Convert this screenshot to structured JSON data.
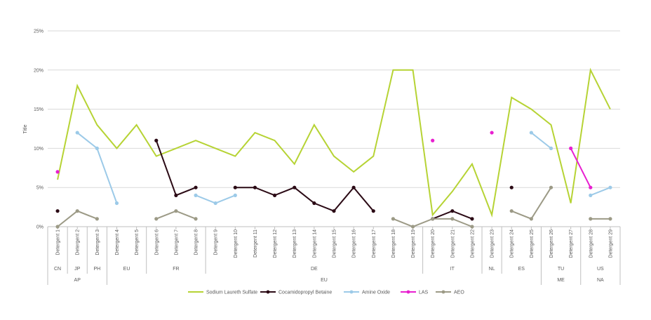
{
  "chart_data": {
    "type": "line",
    "title": "",
    "ylabel": "Title",
    "xlabel": "",
    "ylim": [
      0,
      25
    ],
    "yticks": [
      "0%",
      "5%",
      "10%",
      "15%",
      "20%",
      "25%"
    ],
    "ytick_values": [
      0,
      5,
      10,
      15,
      20,
      25
    ],
    "grid": true,
    "legend_position": "bottom",
    "categories": [
      "Detergent 1",
      "Detergent 2",
      "Detergent 3",
      "Detergent 4",
      "Detergent 5",
      "Detergent 6",
      "Detergent 7",
      "Detergent 8",
      "Detergent 9",
      "Detergent 10",
      "Detergent 11",
      "Detergent 12",
      "Detergent 13",
      "Detergent 14",
      "Detergent 15",
      "Detergent 16",
      "Detergent 17",
      "Detergent 18",
      "Detergent 19",
      "Detergent 20",
      "Detergent 21",
      "Detergent 22",
      "Detergent 23",
      "Detergent 24",
      "Detergent 25",
      "Detergent 26",
      "Detergent 27",
      "Detergent 28",
      "Detergent 29"
    ],
    "countries": [
      {
        "label": "CN",
        "span": [
          1,
          1
        ]
      },
      {
        "label": "JP",
        "span": [
          2,
          2
        ]
      },
      {
        "label": "PH",
        "span": [
          3,
          3
        ]
      },
      {
        "label": "EU",
        "span": [
          4,
          5
        ]
      },
      {
        "label": "FR",
        "span": [
          6,
          8
        ]
      },
      {
        "label": "DE",
        "span": [
          9,
          19
        ]
      },
      {
        "label": "IT",
        "span": [
          20,
          22
        ]
      },
      {
        "label": "NL",
        "span": [
          23,
          23
        ]
      },
      {
        "label": "ES",
        "span": [
          24,
          25
        ]
      },
      {
        "label": "TU",
        "span": [
          26,
          27
        ]
      },
      {
        "label": "US",
        "span": [
          28,
          29
        ]
      }
    ],
    "regions": [
      {
        "label": "AP",
        "span": [
          1,
          3
        ]
      },
      {
        "label": "EU",
        "span": [
          4,
          25
        ]
      },
      {
        "label": "ME",
        "span": [
          26,
          27
        ]
      },
      {
        "label": "NA",
        "span": [
          28,
          29
        ]
      }
    ],
    "series": [
      {
        "name": "Sodium Laureth Sulfate",
        "color": "#b6d334",
        "values": [
          6,
          18,
          13,
          10,
          13,
          9,
          10,
          11,
          10,
          9,
          12,
          11,
          8,
          13,
          9,
          7,
          9,
          20,
          20,
          1.5,
          4.5,
          8,
          1.5,
          16.5,
          15,
          13,
          3,
          20,
          15
        ]
      },
      {
        "name": "Cocamidopropyl Betaine",
        "color": "#2b0a15",
        "values": [
          2,
          null,
          null,
          null,
          null,
          11,
          4,
          5,
          null,
          5,
          5,
          4,
          5,
          3,
          2,
          5,
          2,
          null,
          null,
          1,
          2,
          1,
          null,
          5,
          null,
          null,
          null,
          null,
          null
        ]
      },
      {
        "name": "Amine Oxide",
        "color": "#9ccae8",
        "values": [
          null,
          12,
          10,
          3,
          null,
          null,
          null,
          4,
          3,
          4,
          null,
          null,
          null,
          null,
          null,
          null,
          null,
          null,
          null,
          null,
          null,
          null,
          null,
          null,
          12,
          10,
          null,
          4,
          5
        ]
      },
      {
        "name": "LAS",
        "color": "#e81fd0",
        "values": [
          7,
          null,
          null,
          null,
          null,
          null,
          null,
          null,
          null,
          null,
          null,
          null,
          null,
          null,
          null,
          null,
          null,
          null,
          null,
          11,
          null,
          null,
          12,
          null,
          null,
          null,
          10,
          5,
          null
        ]
      },
      {
        "name": "AEO",
        "color": "#9c9a86",
        "values": [
          0,
          2,
          1,
          null,
          null,
          1,
          2,
          1,
          null,
          null,
          null,
          null,
          null,
          null,
          null,
          null,
          null,
          1,
          0,
          1,
          1,
          0,
          null,
          2,
          1,
          5,
          null,
          1,
          1
        ]
      }
    ]
  }
}
